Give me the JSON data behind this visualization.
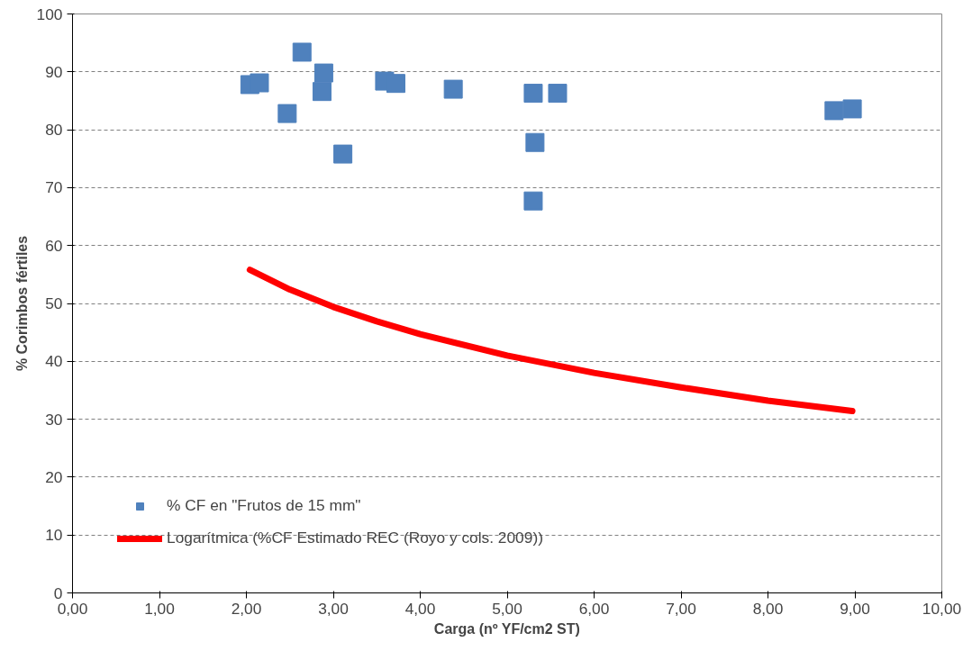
{
  "chart_data": {
    "type": "scatter",
    "xlabel": "Carga (nº YF/cm2 ST)",
    "ylabel": "% Corimbos fértiles",
    "xlim": [
      0,
      10
    ],
    "ylim": [
      0,
      100
    ],
    "xticks": [
      {
        "value": 0,
        "label": "0,00"
      },
      {
        "value": 1,
        "label": "1,00"
      },
      {
        "value": 2,
        "label": "2,00"
      },
      {
        "value": 3,
        "label": "3,00"
      },
      {
        "value": 4,
        "label": "4,00"
      },
      {
        "value": 5,
        "label": "5,00"
      },
      {
        "value": 6,
        "label": "6,00"
      },
      {
        "value": 7,
        "label": "7,00"
      },
      {
        "value": 8,
        "label": "8,00"
      },
      {
        "value": 9,
        "label": "9,00"
      },
      {
        "value": 10,
        "label": "10,00"
      }
    ],
    "yticks": [
      0,
      10,
      20,
      30,
      40,
      50,
      60,
      70,
      80,
      90,
      100
    ],
    "grid": "y",
    "legend": "bottom left",
    "series": [
      {
        "name": "% CF en \"Frutos de 15 mm\"",
        "marker": "square",
        "color": "#4f81bd",
        "x": [
          2.04,
          2.15,
          2.47,
          2.64,
          2.89,
          2.87,
          3.11,
          3.59,
          3.72,
          4.38,
          5.3,
          5.32,
          5.3,
          5.58,
          8.76,
          8.97
        ],
        "values": [
          87.8,
          88.1,
          82.8,
          93.4,
          89.8,
          86.6,
          75.8,
          88.4,
          88.0,
          87.0,
          86.3,
          77.8,
          67.7,
          86.3,
          83.3,
          83.6
        ]
      },
      {
        "name": "Logarítmica (%CF Estimado REC (Royo y cols. 2009))",
        "type": "line",
        "color": "#ff0000",
        "line_style": "solid",
        "x": [
          2.04,
          2.5,
          3,
          3.5,
          4,
          5,
          6,
          7,
          8,
          8.97
        ],
        "values": [
          55.8,
          52.4,
          49.4,
          46.9,
          44.7,
          41.0,
          38.0,
          35.5,
          33.2,
          31.4
        ]
      }
    ]
  }
}
